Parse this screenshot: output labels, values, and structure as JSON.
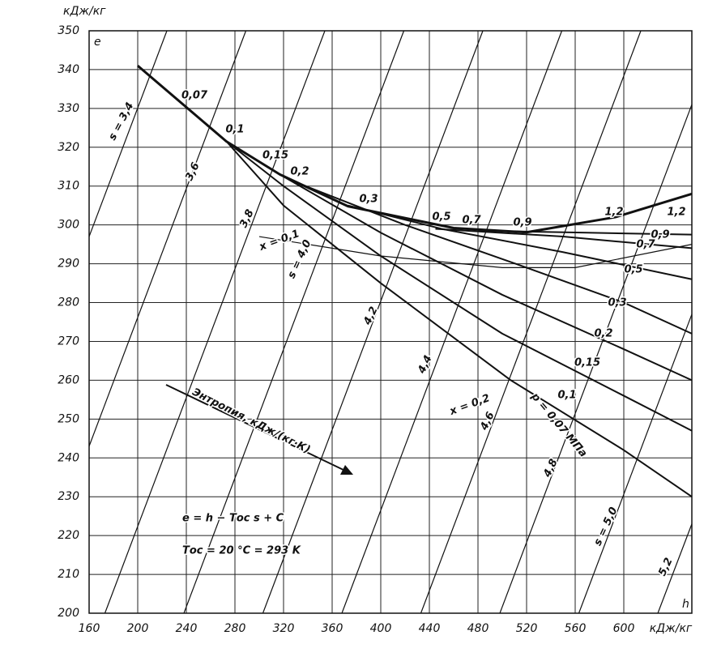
{
  "chart_data": {
    "type": "line",
    "y_axis_label": "кДж/кг",
    "y_symbol": "e",
    "x_symbol": "h",
    "x_axis_label": "кДж/кг",
    "xlim": [
      160,
      656
    ],
    "ylim": [
      200,
      350
    ],
    "xticks": [
      160,
      200,
      240,
      280,
      320,
      360,
      400,
      440,
      480,
      520,
      560,
      600
    ],
    "yticks": [
      200,
      210,
      220,
      230,
      240,
      250,
      260,
      270,
      280,
      290,
      300,
      310,
      320,
      330,
      340,
      350
    ],
    "grid": true,
    "color": "#111",
    "series": [
      {
        "x": [
          200,
          273,
          317,
          373,
          460,
          520,
          593,
          656
        ],
        "values": [
          341,
          321.5,
          313,
          304.8,
          299.2,
          298.1,
          302,
          308
        ],
        "width": 3
      },
      {
        "x": [
          200,
          273,
          320,
          400,
          507,
          600,
          656
        ],
        "values": [
          341,
          321.5,
          305,
          285,
          260,
          242,
          230
        ],
        "width": 2
      },
      {
        "x": [
          273,
          320,
          400,
          500,
          600,
          656
        ],
        "values": [
          321.5,
          310,
          292,
          272,
          256,
          247
        ],
        "width": 2
      },
      {
        "x": [
          317,
          400,
          500,
          600,
          656
        ],
        "values": [
          313,
          298,
          282,
          268,
          260
        ],
        "width": 2
      },
      {
        "x": [
          330,
          420,
          520,
          600,
          656
        ],
        "values": [
          311,
          300,
          289,
          280,
          272
        ],
        "width": 2
      },
      {
        "x": [
          373,
          450,
          550,
          656
        ],
        "values": [
          305,
          299,
          293,
          286
        ],
        "width": 2
      },
      {
        "x": [
          445,
          550,
          656
        ],
        "values": [
          299,
          297,
          294
        ],
        "width": 2
      },
      {
        "x": [
          480,
          570,
          656
        ],
        "values": [
          298.5,
          298,
          297.5
        ],
        "width": 2
      },
      {
        "x": [
          300,
          400,
          500,
          560,
          656
        ],
        "values": [
          297,
          292,
          289,
          289,
          295
        ],
        "width": 1.2
      },
      {
        "x": [
          160,
          224
        ],
        "values": [
          297,
          350
        ],
        "width": 1.2
      },
      {
        "x": [
          160,
          289
        ],
        "values": [
          243,
          350
        ],
        "width": 1.2
      },
      {
        "x": [
          173,
          354
        ],
        "values": [
          200,
          350
        ],
        "width": 1.2
      },
      {
        "x": [
          238,
          419
        ],
        "values": [
          200,
          350
        ],
        "width": 1.2
      },
      {
        "x": [
          303,
          484
        ],
        "values": [
          200,
          350
        ],
        "width": 1.2
      },
      {
        "x": [
          368,
          549
        ],
        "values": [
          200,
          350
        ],
        "width": 1.2
      },
      {
        "x": [
          433,
          614
        ],
        "values": [
          200,
          350
        ],
        "width": 1.2
      },
      {
        "x": [
          498,
          656
        ],
        "values": [
          200,
          331
        ],
        "width": 1.2
      },
      {
        "x": [
          563,
          656
        ],
        "values": [
          200,
          277
        ],
        "width": 1.2
      },
      {
        "x": [
          628,
          656
        ],
        "values": [
          200,
          223
        ],
        "width": 1.2
      }
    ],
    "annotations": [
      "s = 3,4",
      "3,6",
      "3,8",
      "s = 4,0",
      "4,2",
      "4,4",
      "4,6",
      "4,8",
      "s = 5,0",
      "5,2",
      "0,07",
      "0,1",
      "0,15",
      "0,2",
      "0,3",
      "0,5",
      "0,7",
      "0,9",
      "1,2",
      "1,2",
      "0,9",
      "0,7",
      "0,5",
      "0,3",
      "0,2",
      "0,15",
      "0,1",
      "x = 0,1",
      "x = 0,2",
      "p = 0,07 МПа",
      "Энтропия, кДж/(кг·К)",
      "e = h − Tос s + C",
      "Tос = 20 °C = 293 K"
    ]
  }
}
